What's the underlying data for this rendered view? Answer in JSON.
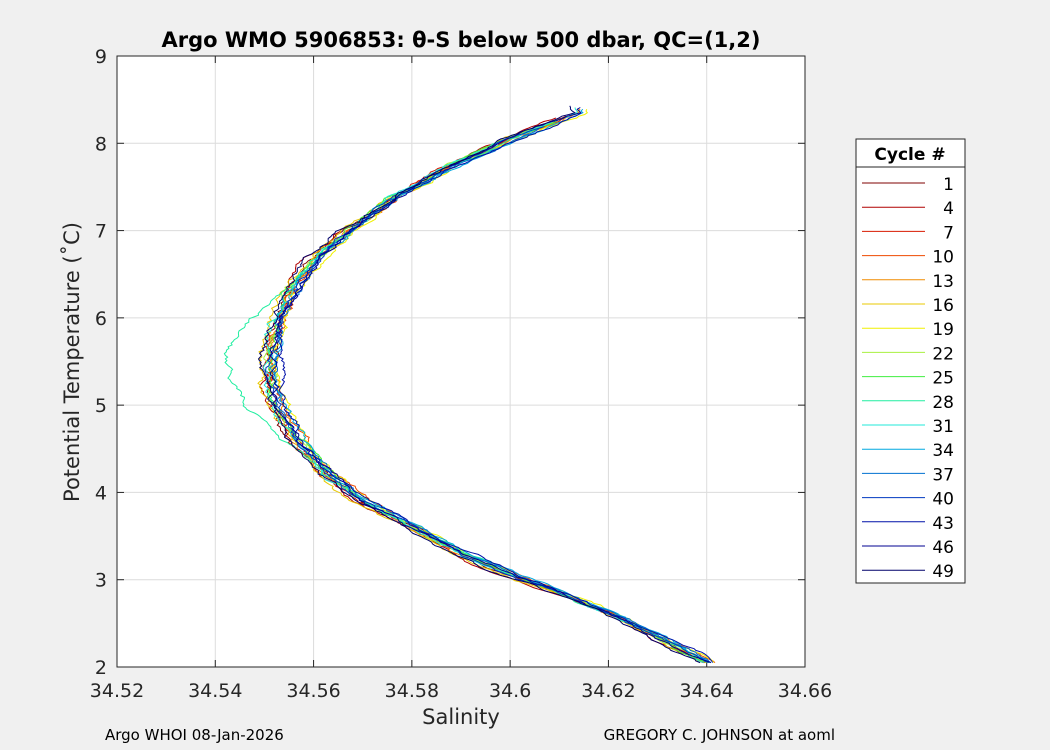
{
  "chart_data": {
    "type": "line",
    "title": "Argo WMO 5906853: θ-S below 500 dbar,  QC=(1,2)",
    "xlabel": "Salinity",
    "ylabel": "Potential Temperature (˚C)",
    "xlim": [
      34.52,
      34.66
    ],
    "ylim": [
      2,
      9
    ],
    "xticks": [
      "34.52",
      "34.54",
      "34.56",
      "34.58",
      "34.6",
      "34.62",
      "34.64",
      "34.66"
    ],
    "yticks": [
      "2",
      "3",
      "4",
      "5",
      "6",
      "7",
      "8",
      "9"
    ],
    "grid": true,
    "legend": {
      "title": "Cycle #",
      "placement": "outside-right",
      "entries": [
        {
          "label": "1",
          "color": "#7f0000"
        },
        {
          "label": "4",
          "color": "#b00000"
        },
        {
          "label": "7",
          "color": "#d81a00"
        },
        {
          "label": "10",
          "color": "#ee4a00"
        },
        {
          "label": "13",
          "color": "#f08c00"
        },
        {
          "label": "16",
          "color": "#e8c800"
        },
        {
          "label": "19",
          "color": "#f0f000"
        },
        {
          "label": "22",
          "color": "#a8f040"
        },
        {
          "label": "25",
          "color": "#40ee40"
        },
        {
          "label": "28",
          "color": "#20eea0"
        },
        {
          "label": "31",
          "color": "#20e8d8"
        },
        {
          "label": "34",
          "color": "#00a8e0"
        },
        {
          "label": "37",
          "color": "#0070d0"
        },
        {
          "label": "40",
          "color": "#0038c0"
        },
        {
          "label": "43",
          "color": "#0010a8"
        },
        {
          "label": "46",
          "color": "#000090"
        },
        {
          "label": "49",
          "color": "#00006a"
        }
      ]
    },
    "profile_shape": {
      "description_points": [
        {
          "s": 34.64,
          "t": 2.05
        },
        {
          "s": 34.63,
          "t": 2.35
        },
        {
          "s": 34.62,
          "t": 2.62
        },
        {
          "s": 34.61,
          "t": 2.85
        },
        {
          "s": 34.6,
          "t": 3.05
        },
        {
          "s": 34.59,
          "t": 3.3
        },
        {
          "s": 34.58,
          "t": 3.6
        },
        {
          "s": 34.57,
          "t": 3.9
        },
        {
          "s": 34.5625,
          "t": 4.22
        },
        {
          "s": 34.557,
          "t": 4.55
        },
        {
          "s": 34.5535,
          "t": 4.9
        },
        {
          "s": 34.5515,
          "t": 5.25
        },
        {
          "s": 34.551,
          "t": 5.6
        },
        {
          "s": 34.5525,
          "t": 5.95
        },
        {
          "s": 34.5555,
          "t": 6.3
        },
        {
          "s": 34.56,
          "t": 6.65
        },
        {
          "s": 34.567,
          "t": 7.0
        },
        {
          "s": 34.577,
          "t": 7.4
        },
        {
          "s": 34.588,
          "t": 7.75
        },
        {
          "s": 34.6,
          "t": 8.05
        },
        {
          "s": 34.614,
          "t": 8.35
        }
      ]
    }
  },
  "footer": {
    "left": "Argo WHOI 08-Jan-2026",
    "right": "GREGORY C. JOHNSON at aoml"
  }
}
